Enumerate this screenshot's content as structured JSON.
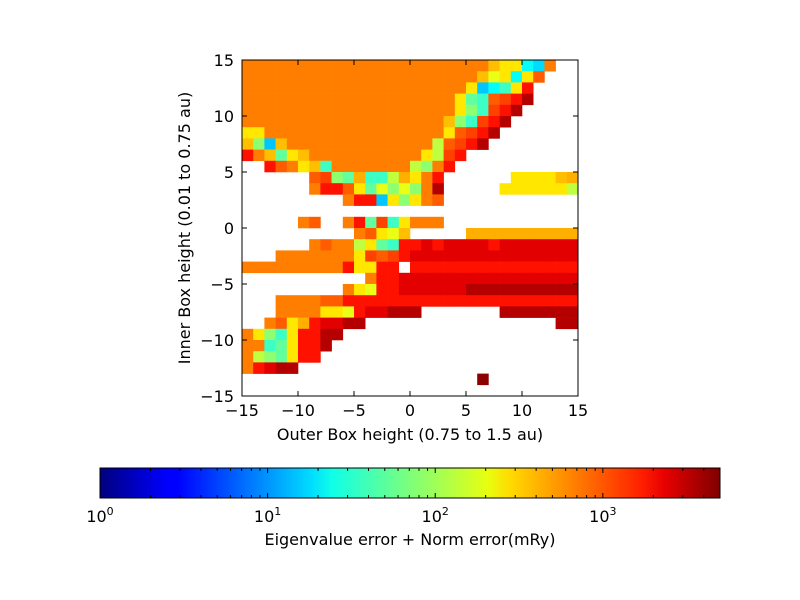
{
  "chart_data": {
    "type": "heatmap",
    "title": "",
    "xlabel": "Outer Box height (0.75 to 1.5 au)",
    "ylabel": "Inner Box height (0.01 to 0.75 au)",
    "xlim": [
      -15,
      15
    ],
    "ylim": [
      -15,
      15
    ],
    "xticks": [
      -15,
      -10,
      -5,
      0,
      5,
      10,
      15
    ],
    "yticks": [
      -15,
      -10,
      -5,
      0,
      5,
      10,
      15
    ],
    "grid": false,
    "colormap": "jet",
    "colorbar": {
      "label": "Eigenvalue error + Norm error(mRy)",
      "scale": "log",
      "range": [
        1,
        5000
      ],
      "ticks": [
        {
          "base": "10",
          "exp": "0",
          "value": 1
        },
        {
          "base": "10",
          "exp": "1",
          "value": 10
        },
        {
          "base": "10",
          "exp": "2",
          "value": 100
        },
        {
          "base": "10",
          "exp": "3",
          "value": 1000
        }
      ]
    },
    "grid_spec": {
      "cols": 30,
      "rows": 30,
      "x_start": -15,
      "y_start": -15,
      "cell_size": 1
    },
    "cell_values_mRy_rows_top_to_bottom": [
      "AAAAAAAAAAAAAAAAAAAAAA9GGCMA..",
      "AAAAAAAAAAAAAAAAAAAAA9YGCGB...",
      "AAAAAAAAAAAAAAAAAAAAGNCDGR....",
      "AAAAAAAAAAAAAAAAAAAGLDBHRT....",
      "AAAAAAAAAAAAAAAAAAAGKDHRT.....",
      "AAAAAAAAAAAAAAAAAA9KDHRT......",
      "GGAAAAAAAAAAAAAAAAGBHRT.......",
      "9KN9AAAAAAAAAAAAAEBHRT........",
      "RA9LG9AAAAAAAAAAGEHR..........",
      "..RBAG9DAAAAAAAEKAR...........",
      "......BHKLFDDEFGAR......GGGG9F",
      "......ARRBGLYKYKAT.....GGGGGGE",
      ".........ARRNGKGAB............",
      "..............................",
      ".....AB..ARLHDGAAA............",
      "..........ABGY9.....FFFFFFFFFF",
      "......ABAAEGLDRRSRSSSSRSSSSSSS",
      "...AAAAAAAGHBHRSSSSSSSSSSSSSSS",
      "AAAAAAAAARGGRR.RRRRRRRRRRRRRRR",
      "...........ARRSSSSSSSSSSSSSSSS",
      ".........AGYRRSSSSSSTTTTTTTTTT",
      "...AAAABBRRRRRRRRRRRRRRRRRRRRR",
      "...AAAAGGYRSSTTT.......TTTTTTT",
      "..ABGFRSSTT.................TT",
      "AGKDGRRTT.....................",
      "AADLGRRT......................",
      "AEKLGRR.......................",
      "ARSTT.........................",
      ".....................U........",
      ".............................."
    ],
    "cell_value_legend": {
      "A": 600,
      "B": 800,
      "C": 25,
      "D": 40,
      "E": 120,
      "F": 400,
      "G": 250,
      "H": 1000,
      "K": 80,
      "L": 55,
      "M": 18,
      "N": 15,
      "R": 1500,
      "S": 2200,
      "T": 3200,
      "U": 4500,
      "Y": 170,
      "9": 350,
      ".": "no data"
    }
  }
}
